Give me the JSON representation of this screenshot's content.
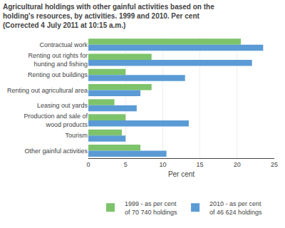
{
  "chart_data": {
    "type": "bar",
    "orientation": "horizontal",
    "title": "Agricultural holdings with other gainful activities based on the\nholding's resources, by activities. 1999 and 2010. Per cent\n(Corrected 4 July 2011 at 10:15 a.m.)",
    "categories": [
      "Contractual work",
      "Renting out rights for\nhunting and fishing",
      "Renting out buildings",
      "Renting out agricultural area",
      "Leasing out yards",
      "Production and sale of\nwood products",
      "Tourism",
      "Other gainful activities"
    ],
    "series": [
      {
        "name": "1999 - as per cent\nof 70 740 holdings",
        "color": "#7dc36b",
        "values": [
          20.5,
          8.5,
          5.0,
          8.5,
          3.5,
          5.0,
          4.5,
          7.0
        ]
      },
      {
        "name": "2010 - as per cent\nof 46 624 holdings",
        "color": "#5b9bd5",
        "values": [
          23.5,
          22.0,
          13.0,
          7.0,
          6.5,
          13.5,
          5.0,
          10.5
        ]
      }
    ],
    "xlabel": "Per cent",
    "xlim": [
      0,
      25
    ],
    "xticks": [
      0,
      5,
      10,
      15,
      20,
      25
    ],
    "grid": true,
    "legend": "bottom"
  }
}
